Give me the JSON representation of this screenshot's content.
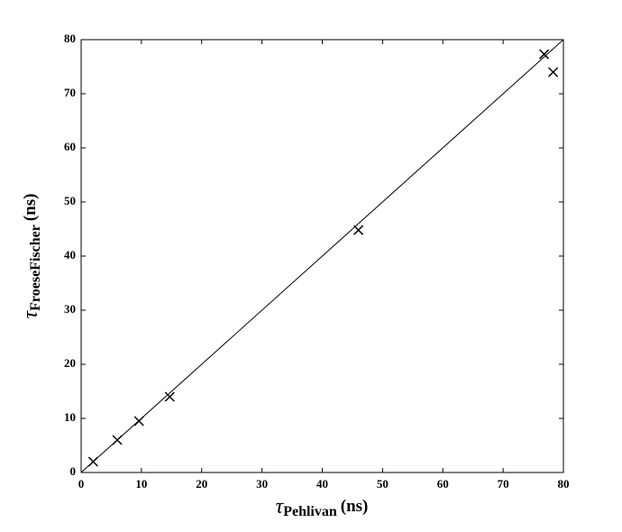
{
  "chart_data": {
    "type": "scatter",
    "x": [
      2,
      6,
      9.6,
      14.7,
      46,
      76.8,
      78.3
    ],
    "series": [
      {
        "color": "#000000",
        "marker": "x",
        "values": [
          2,
          6,
          9.5,
          14,
          44.8,
          77.3,
          74
        ]
      }
    ],
    "reference_line": {
      "x": [
        0,
        80
      ],
      "y": [
        0,
        80
      ],
      "color": "#000000"
    },
    "xlabel": {
      "symbol": "τ",
      "subscript": "Pehlivan",
      "unit": "(ns)"
    },
    "ylabel": {
      "symbol": "τ",
      "subscript": "FroeseFischer",
      "unit": "(ns)"
    },
    "xlim": [
      0,
      80
    ],
    "ylim": [
      0,
      80
    ],
    "xticks": [
      0,
      10,
      20,
      30,
      40,
      50,
      60,
      70,
      80
    ],
    "yticks": [
      0,
      10,
      20,
      30,
      40,
      50,
      60,
      70,
      80
    ],
    "grid": false
  }
}
